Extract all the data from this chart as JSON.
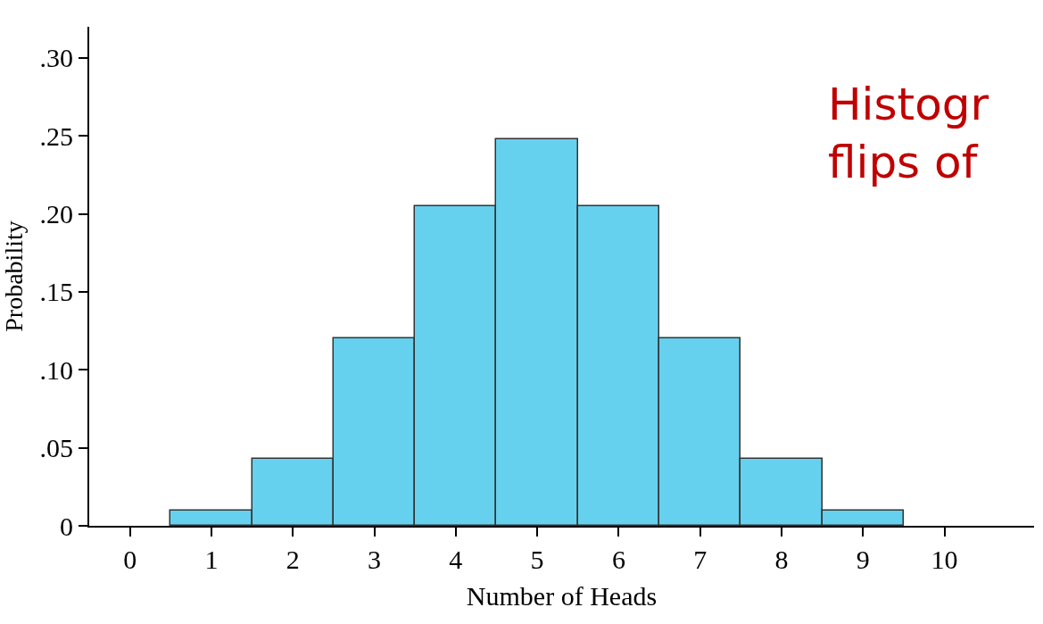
{
  "chart_data": {
    "type": "histogram",
    "xlabel": "Number of Heads",
    "ylabel": "Probability",
    "annotations": [
      "Histogr\nflips of"
    ],
    "bins": [
      0.5,
      1.5,
      2.5,
      3.5,
      4.5,
      5.5,
      6.5,
      7.5,
      8.5,
      9.5
    ],
    "values": [
      0.01,
      0.043,
      0.12,
      0.205,
      0.248,
      0.205,
      0.12,
      0.043,
      0.01
    ],
    "color": "#66d1ee",
    "xlim": [
      -0.5,
      11.1
    ],
    "xticks": [
      0,
      1,
      2,
      3,
      4,
      5,
      6,
      7,
      8,
      9,
      10
    ],
    "ylim": [
      0,
      0.32
    ],
    "yticks": [
      0,
      {
        "value": 0.05,
        "label": ".05"
      },
      {
        "value": 0.1,
        "label": ".10"
      },
      {
        "value": 0.15,
        "label": ".15"
      },
      {
        "value": 0.2,
        "label": ".20"
      },
      {
        "value": 0.25,
        "label": ".25"
      },
      {
        "value": 0.3,
        "label": ".30"
      }
    ]
  }
}
